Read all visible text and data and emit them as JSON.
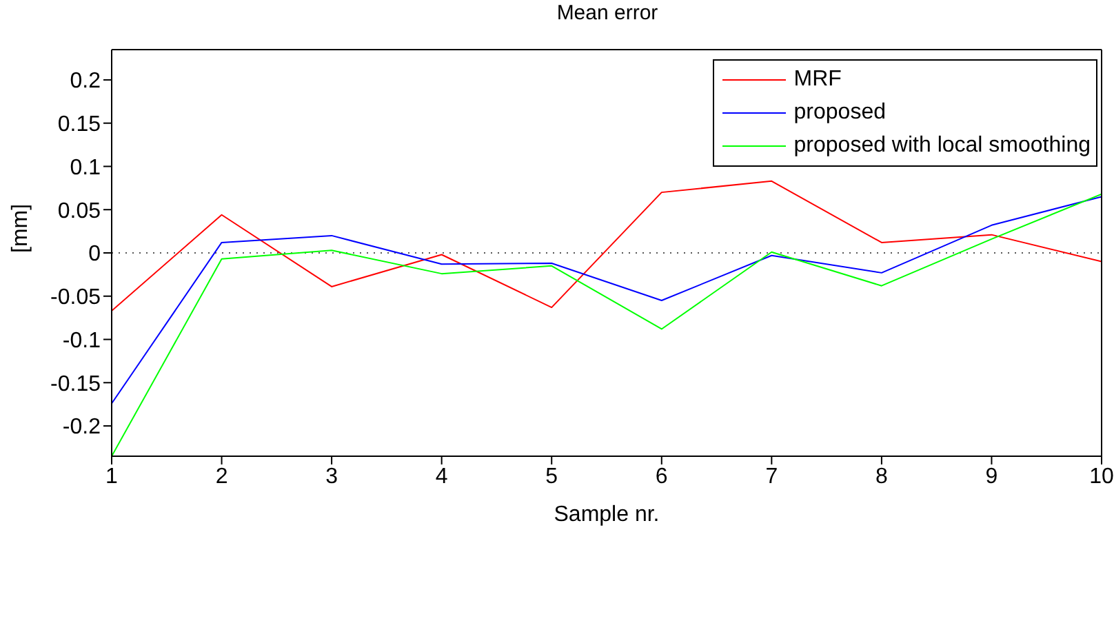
{
  "chart_data": {
    "type": "line",
    "title": "Mean error",
    "xlabel": "Sample nr.",
    "ylabel": "[mm]",
    "x": [
      1,
      2,
      3,
      4,
      5,
      6,
      7,
      8,
      9,
      10
    ],
    "series": [
      {
        "name": "MRF",
        "color": "#ff0000",
        "values": [
          -0.067,
          0.044,
          -0.039,
          -0.002,
          -0.063,
          0.07,
          0.083,
          0.012,
          0.021,
          -0.01
        ]
      },
      {
        "name": "proposed",
        "color": "#0000ff",
        "values": [
          -0.174,
          0.012,
          0.02,
          -0.013,
          -0.012,
          -0.055,
          -0.003,
          -0.023,
          0.032,
          0.065
        ]
      },
      {
        "name": "proposed with local smoothing",
        "color": "#00ff00",
        "values": [
          -0.235,
          -0.007,
          0.003,
          -0.024,
          -0.015,
          -0.088,
          0.001,
          -0.038,
          0.016,
          0.068
        ]
      }
    ],
    "xlim": [
      1,
      10
    ],
    "xticks": [
      1,
      2,
      3,
      4,
      5,
      6,
      7,
      8,
      9,
      10
    ],
    "ylim": [
      -0.235,
      0.235
    ],
    "yticks": [
      -0.2,
      -0.15,
      -0.1,
      -0.05,
      0,
      0.05,
      0.1,
      0.15,
      0.2
    ],
    "ref_lines": [
      {
        "axis": "y",
        "value": 0,
        "color": "#555555",
        "line_style": "dotted"
      }
    ],
    "grid": false,
    "legend": "top right",
    "marker": "none",
    "line_style": "solid"
  }
}
